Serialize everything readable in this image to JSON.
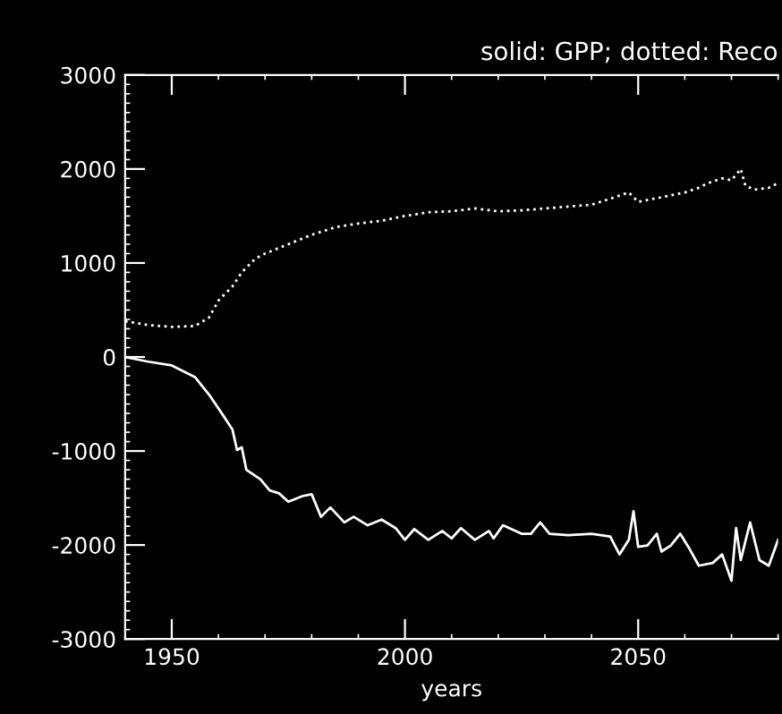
{
  "chart_data": {
    "type": "line",
    "title": "solid: GPP; dotted: Reco",
    "xlabel": "years",
    "xlim": [
      1940,
      2080
    ],
    "xticks": [
      1950,
      2000,
      2050
    ],
    "ylim": [
      -3000,
      3000
    ],
    "yticks": [
      -3000,
      -2000,
      -1000,
      0,
      1000,
      2000,
      3000
    ],
    "grid": false,
    "legend": false,
    "series": [
      {
        "color": "#ffffff",
        "line_style": "solid",
        "x": [
          1940,
          1945,
          1950,
          1955,
          1958,
          1961,
          1963,
          1964,
          1965,
          1966,
          1969,
          1971,
          1973,
          1975,
          1978,
          1980,
          1982,
          1984,
          1987,
          1989,
          1992,
          1995,
          1998,
          2000,
          2002,
          2005,
          2008,
          2010,
          2012,
          2015,
          2018,
          2019,
          2021,
          2025,
          2027,
          2029,
          2031,
          2035,
          2040,
          2044,
          2046,
          2048,
          2049,
          2050,
          2052,
          2054,
          2055,
          2057,
          2059,
          2061,
          2063,
          2066,
          2068,
          2070,
          2071,
          2072,
          2074,
          2076,
          2078,
          2080
        ],
        "values": [
          0,
          -50,
          -90,
          -215,
          -400,
          -620,
          -770,
          -990,
          -960,
          -1200,
          -1300,
          -1420,
          -1450,
          -1540,
          -1480,
          -1460,
          -1700,
          -1600,
          -1760,
          -1700,
          -1790,
          -1730,
          -1820,
          -1945,
          -1830,
          -1945,
          -1850,
          -1930,
          -1820,
          -1945,
          -1850,
          -1930,
          -1790,
          -1880,
          -1880,
          -1760,
          -1880,
          -1895,
          -1880,
          -1910,
          -2100,
          -1945,
          -1640,
          -2020,
          -2005,
          -1880,
          -2070,
          -2005,
          -1880,
          -2040,
          -2220,
          -2190,
          -2100,
          -2380,
          -1820,
          -2160,
          -1760,
          -2160,
          -2220,
          -1945
        ]
      },
      {
        "color": "#ffffff",
        "line_style": "dotted",
        "x": [
          1940,
          1945,
          1950,
          1955,
          1958,
          1960,
          1963,
          1965,
          1968,
          1970,
          1975,
          1980,
          1985,
          1990,
          1995,
          2000,
          2005,
          2010,
          2015,
          2020,
          2025,
          2030,
          2035,
          2040,
          2045,
          2048,
          2050,
          2055,
          2060,
          2063,
          2065,
          2068,
          2070,
          2072,
          2073,
          2075,
          2078,
          2080
        ],
        "values": [
          380,
          340,
          320,
          330,
          420,
          600,
          750,
          900,
          1050,
          1100,
          1200,
          1300,
          1380,
          1420,
          1450,
          1500,
          1540,
          1550,
          1580,
          1550,
          1560,
          1580,
          1600,
          1620,
          1700,
          1750,
          1650,
          1700,
          1750,
          1800,
          1850,
          1900,
          1880,
          2000,
          1820,
          1780,
          1800,
          1850
        ]
      }
    ]
  }
}
